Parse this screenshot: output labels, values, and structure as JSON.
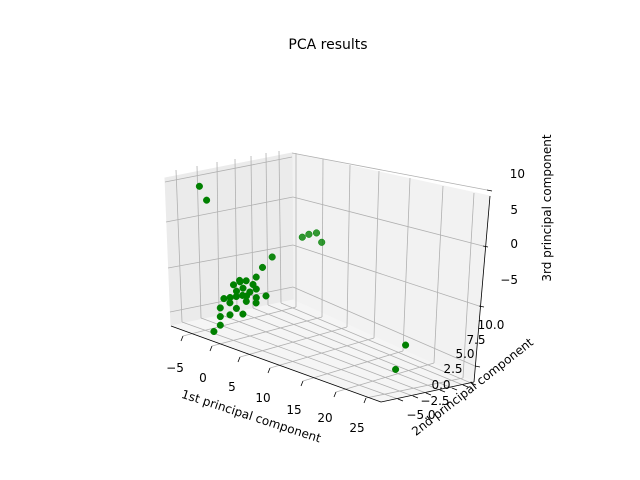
{
  "chart_data": {
    "type": "scatter",
    "title": "PCA results",
    "xlabel": "1st principal component",
    "ylabel": "2nd principal component",
    "zlabel": "3rd principal component",
    "xticks": [
      "−5",
      "0",
      "5",
      "10",
      "15",
      "20",
      "25"
    ],
    "yticks": [
      "−5.0",
      "−2.5",
      "0.0",
      "2.5",
      "5.0",
      "7.5",
      "10.0"
    ],
    "zticks": [
      "−5",
      "0",
      "5",
      "10"
    ],
    "marker_color": "#008000",
    "series": [
      {
        "points": [
          {
            "x": -4.5,
            "y": -2.5,
            "z": 12.5
          },
          {
            "x": -4.0,
            "y": -2.0,
            "z": 10.5
          },
          {
            "x": 2.0,
            "y": 7.0,
            "z": 5.5
          },
          {
            "x": 3.0,
            "y": 7.2,
            "z": 6.0
          },
          {
            "x": 1.5,
            "y": 6.5,
            "z": 5.0
          },
          {
            "x": 4.0,
            "y": 7.0,
            "z": 5.0
          },
          {
            "x": 0.5,
            "y": 3.0,
            "z": 2.5
          },
          {
            "x": 0.0,
            "y": 2.0,
            "z": 1.0
          },
          {
            "x": -0.5,
            "y": 1.5,
            "z": -0.5
          },
          {
            "x": -1.0,
            "y": 0.5,
            "z": -1.0
          },
          {
            "x": -0.5,
            "y": 1.0,
            "z": -1.5
          },
          {
            "x": -1.5,
            "y": 0.0,
            "z": -1.0
          },
          {
            "x": -2.0,
            "y": 0.5,
            "z": -1.5
          },
          {
            "x": -1.0,
            "y": 0.0,
            "z": -2.0
          },
          {
            "x": 0.0,
            "y": 1.0,
            "z": -2.0
          },
          {
            "x": -0.5,
            "y": 0.5,
            "z": -2.5
          },
          {
            "x": -1.5,
            "y": -0.5,
            "z": -2.5
          },
          {
            "x": -2.5,
            "y": 0.0,
            "z": -2.0
          },
          {
            "x": -1.0,
            "y": -1.0,
            "z": -3.0
          },
          {
            "x": 0.5,
            "y": 0.5,
            "z": -3.0
          },
          {
            "x": 0.0,
            "y": -0.5,
            "z": -3.5
          },
          {
            "x": -2.0,
            "y": -1.0,
            "z": -3.5
          },
          {
            "x": -1.5,
            "y": -1.5,
            "z": -4.0
          },
          {
            "x": 1.0,
            "y": 0.0,
            "z": -3.5
          },
          {
            "x": -0.5,
            "y": -1.5,
            "z": -4.5
          },
          {
            "x": -3.0,
            "y": -1.0,
            "z": -4.0
          },
          {
            "x": -2.5,
            "y": -2.0,
            "z": -5.0
          },
          {
            "x": -1.0,
            "y": -2.0,
            "z": -5.5
          },
          {
            "x": 0.5,
            "y": -1.5,
            "z": -5.0
          },
          {
            "x": -2.0,
            "y": -2.5,
            "z": -6.0
          },
          {
            "x": -1.5,
            "y": -3.0,
            "z": -7.0
          },
          {
            "x": -2.0,
            "y": -3.5,
            "z": -8.0
          },
          {
            "x": 0.0,
            "y": -1.0,
            "z": -2.5
          },
          {
            "x": -0.5,
            "y": 0.0,
            "z": -3.0
          },
          {
            "x": 1.5,
            "y": 1.0,
            "z": -2.5
          },
          {
            "x": 24.0,
            "y": 0.5,
            "z": -2.0
          },
          {
            "x": 24.5,
            "y": -1.5,
            "z": -5.0
          }
        ]
      }
    ]
  }
}
